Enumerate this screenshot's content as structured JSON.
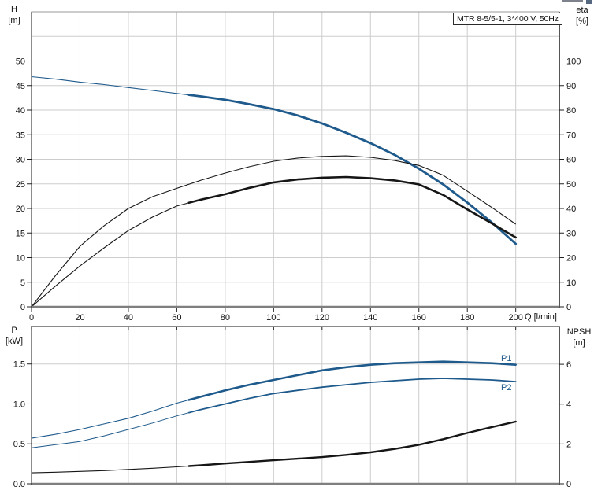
{
  "title_box": {
    "text": "MTR 8-5/5-1, 3*400 V, 50Hz"
  },
  "colors": {
    "curve_blue": "#1e5a8c",
    "curve_black": "#161616",
    "grid": "#cdcdcd",
    "plot_border": "#9a9a9a",
    "axis_dark": "#2a2a2a",
    "label_blue": "#1e5a8c"
  },
  "top_chart": {
    "y_left": {
      "title_line1": "H",
      "title_line2": "[m]",
      "ticks": [
        "0",
        "5",
        "10",
        "15",
        "20",
        "25",
        "30",
        "35",
        "40",
        "45",
        "50"
      ]
    },
    "y_right": {
      "title_line1": "eta",
      "title_line2": "[%]",
      "ticks": [
        "0",
        "10",
        "20",
        "30",
        "40",
        "50",
        "60",
        "70",
        "80",
        "90",
        "100"
      ]
    },
    "x_axis": {
      "ticks": [
        "0",
        "20",
        "40",
        "60",
        "80",
        "100",
        "120",
        "140",
        "160",
        "180",
        "200"
      ],
      "unit_label": "Q [l/min]"
    }
  },
  "bottom_chart": {
    "y_left": {
      "title_line1": "P",
      "title_line2": "[kW]",
      "ticks": [
        "0.0",
        "0.5",
        "1.0",
        "1.5"
      ]
    },
    "y_right": {
      "title_line1": "NPSH",
      "title_line2": "[m]",
      "ticks": [
        "0",
        "2",
        "4",
        "6"
      ]
    },
    "curve_labels": {
      "p1": "P1",
      "p2": "P2"
    }
  },
  "chart_data": [
    {
      "type": "line",
      "title": "MTR 8-5/5-1, 3*400 V, 50Hz",
      "xlabel": "Q [l/min]",
      "ylabel_left": "H [m]",
      "ylabel_right": "eta [%]",
      "xlim": [
        0,
        218
      ],
      "ylim_left": [
        0,
        60
      ],
      "ylim_right": [
        0,
        120
      ],
      "grid": true,
      "x": [
        0,
        10,
        20,
        30,
        40,
        50,
        60,
        70,
        80,
        90,
        100,
        110,
        120,
        130,
        140,
        150,
        160,
        170,
        180,
        190,
        200
      ],
      "series": [
        {
          "name": "H",
          "axis": "left",
          "color": "#1e5a8c",
          "width": 1.1,
          "bold_width": 2.8,
          "bold_from": 65,
          "values": [
            46.8,
            46.3,
            45.7,
            45.2,
            44.6,
            44.0,
            43.4,
            42.8,
            42.1,
            41.2,
            40.2,
            38.9,
            37.3,
            35.4,
            33.3,
            30.9,
            28.1,
            24.9,
            21.2,
            17.2,
            12.8
          ]
        },
        {
          "name": "eta1",
          "axis": "right",
          "color": "#161616",
          "width": 1.1,
          "values": [
            0,
            12.8,
            24.6,
            33.0,
            40.0,
            44.8,
            48.2,
            51.5,
            54.4,
            57.0,
            59.2,
            60.5,
            61.2,
            61.4,
            60.8,
            59.5,
            57.5,
            53.5,
            47.0,
            40.5,
            33.6
          ]
        },
        {
          "name": "eta2",
          "axis": "right",
          "color": "#161616",
          "width": 1.1,
          "bold_width": 2.6,
          "bold_from": 65,
          "values": [
            0,
            8.5,
            16.6,
            24.0,
            31.0,
            36.5,
            41.0,
            43.6,
            45.8,
            48.4,
            50.6,
            51.8,
            52.5,
            52.8,
            52.3,
            51.4,
            49.8,
            45.5,
            39.6,
            34.0,
            28.2
          ]
        }
      ]
    },
    {
      "type": "line",
      "title": "",
      "xlabel": "Q [l/min]",
      "ylabel_left": "P [kW]",
      "ylabel_right": "NPSH [m]",
      "xlim": [
        0,
        218
      ],
      "ylim_left": [
        0,
        1.97
      ],
      "ylim_right": [
        0,
        7.9
      ],
      "grid": true,
      "x": [
        0,
        10,
        20,
        30,
        40,
        50,
        60,
        70,
        80,
        90,
        100,
        110,
        120,
        130,
        140,
        150,
        160,
        170,
        180,
        190,
        200
      ],
      "series": [
        {
          "name": "P1",
          "axis": "left",
          "color": "#1e5a8c",
          "width": 1.1,
          "bold_width": 2.6,
          "bold_from": 65,
          "values": [
            0.57,
            0.62,
            0.68,
            0.75,
            0.82,
            0.91,
            1.01,
            1.09,
            1.17,
            1.24,
            1.3,
            1.36,
            1.42,
            1.46,
            1.49,
            1.51,
            1.52,
            1.53,
            1.52,
            1.51,
            1.49
          ]
        },
        {
          "name": "P2",
          "axis": "left",
          "color": "#1e5a8c",
          "width": 1.0,
          "bold_width": 1.8,
          "bold_from": 65,
          "values": [
            0.45,
            0.49,
            0.53,
            0.6,
            0.68,
            0.76,
            0.85,
            0.93,
            1.0,
            1.07,
            1.13,
            1.17,
            1.21,
            1.24,
            1.27,
            1.29,
            1.31,
            1.32,
            1.31,
            1.3,
            1.28
          ]
        },
        {
          "name": "NPSH",
          "axis": "right",
          "color": "#161616",
          "width": 1.1,
          "bold_width": 2.4,
          "bold_from": 65,
          "values": [
            0.55,
            0.58,
            0.62,
            0.66,
            0.72,
            0.78,
            0.85,
            0.93,
            1.02,
            1.1,
            1.18,
            1.26,
            1.34,
            1.45,
            1.58,
            1.75,
            1.96,
            2.24,
            2.55,
            2.84,
            3.12
          ]
        }
      ]
    }
  ]
}
